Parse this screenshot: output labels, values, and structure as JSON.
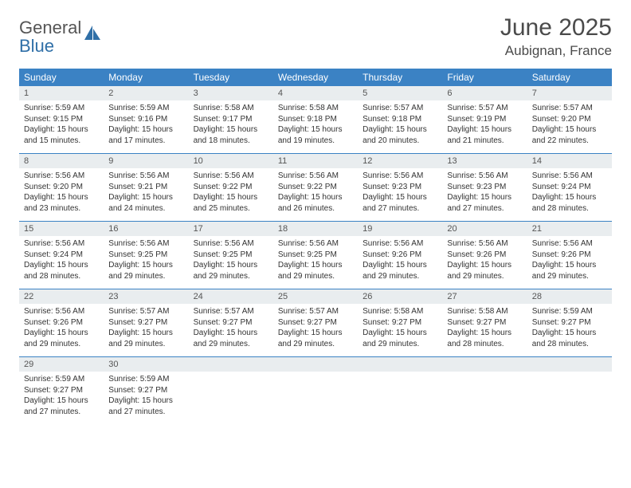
{
  "logo": {
    "word1": "General",
    "word2": "Blue"
  },
  "title": "June 2025",
  "location": "Aubignan, France",
  "colors": {
    "header_bg": "#3b82c4",
    "header_text": "#ffffff",
    "daynum_bg": "#e9edef",
    "border": "#3b82c4",
    "body_text": "#333333",
    "title_text": "#4a4a4a",
    "logo_gray": "#555555",
    "logo_blue": "#2f6fa7"
  },
  "typography": {
    "title_fontsize": 30,
    "location_fontsize": 17,
    "weekday_fontsize": 12,
    "daynum_fontsize": 11,
    "cell_fontsize": 10
  },
  "weekdays": [
    "Sunday",
    "Monday",
    "Tuesday",
    "Wednesday",
    "Thursday",
    "Friday",
    "Saturday"
  ],
  "weeks": [
    [
      {
        "n": "1",
        "sr": "Sunrise: 5:59 AM",
        "ss": "Sunset: 9:15 PM",
        "d1": "Daylight: 15 hours",
        "d2": "and 15 minutes."
      },
      {
        "n": "2",
        "sr": "Sunrise: 5:59 AM",
        "ss": "Sunset: 9:16 PM",
        "d1": "Daylight: 15 hours",
        "d2": "and 17 minutes."
      },
      {
        "n": "3",
        "sr": "Sunrise: 5:58 AM",
        "ss": "Sunset: 9:17 PM",
        "d1": "Daylight: 15 hours",
        "d2": "and 18 minutes."
      },
      {
        "n": "4",
        "sr": "Sunrise: 5:58 AM",
        "ss": "Sunset: 9:18 PM",
        "d1": "Daylight: 15 hours",
        "d2": "and 19 minutes."
      },
      {
        "n": "5",
        "sr": "Sunrise: 5:57 AM",
        "ss": "Sunset: 9:18 PM",
        "d1": "Daylight: 15 hours",
        "d2": "and 20 minutes."
      },
      {
        "n": "6",
        "sr": "Sunrise: 5:57 AM",
        "ss": "Sunset: 9:19 PM",
        "d1": "Daylight: 15 hours",
        "d2": "and 21 minutes."
      },
      {
        "n": "7",
        "sr": "Sunrise: 5:57 AM",
        "ss": "Sunset: 9:20 PM",
        "d1": "Daylight: 15 hours",
        "d2": "and 22 minutes."
      }
    ],
    [
      {
        "n": "8",
        "sr": "Sunrise: 5:56 AM",
        "ss": "Sunset: 9:20 PM",
        "d1": "Daylight: 15 hours",
        "d2": "and 23 minutes."
      },
      {
        "n": "9",
        "sr": "Sunrise: 5:56 AM",
        "ss": "Sunset: 9:21 PM",
        "d1": "Daylight: 15 hours",
        "d2": "and 24 minutes."
      },
      {
        "n": "10",
        "sr": "Sunrise: 5:56 AM",
        "ss": "Sunset: 9:22 PM",
        "d1": "Daylight: 15 hours",
        "d2": "and 25 minutes."
      },
      {
        "n": "11",
        "sr": "Sunrise: 5:56 AM",
        "ss": "Sunset: 9:22 PM",
        "d1": "Daylight: 15 hours",
        "d2": "and 26 minutes."
      },
      {
        "n": "12",
        "sr": "Sunrise: 5:56 AM",
        "ss": "Sunset: 9:23 PM",
        "d1": "Daylight: 15 hours",
        "d2": "and 27 minutes."
      },
      {
        "n": "13",
        "sr": "Sunrise: 5:56 AM",
        "ss": "Sunset: 9:23 PM",
        "d1": "Daylight: 15 hours",
        "d2": "and 27 minutes."
      },
      {
        "n": "14",
        "sr": "Sunrise: 5:56 AM",
        "ss": "Sunset: 9:24 PM",
        "d1": "Daylight: 15 hours",
        "d2": "and 28 minutes."
      }
    ],
    [
      {
        "n": "15",
        "sr": "Sunrise: 5:56 AM",
        "ss": "Sunset: 9:24 PM",
        "d1": "Daylight: 15 hours",
        "d2": "and 28 minutes."
      },
      {
        "n": "16",
        "sr": "Sunrise: 5:56 AM",
        "ss": "Sunset: 9:25 PM",
        "d1": "Daylight: 15 hours",
        "d2": "and 29 minutes."
      },
      {
        "n": "17",
        "sr": "Sunrise: 5:56 AM",
        "ss": "Sunset: 9:25 PM",
        "d1": "Daylight: 15 hours",
        "d2": "and 29 minutes."
      },
      {
        "n": "18",
        "sr": "Sunrise: 5:56 AM",
        "ss": "Sunset: 9:25 PM",
        "d1": "Daylight: 15 hours",
        "d2": "and 29 minutes."
      },
      {
        "n": "19",
        "sr": "Sunrise: 5:56 AM",
        "ss": "Sunset: 9:26 PM",
        "d1": "Daylight: 15 hours",
        "d2": "and 29 minutes."
      },
      {
        "n": "20",
        "sr": "Sunrise: 5:56 AM",
        "ss": "Sunset: 9:26 PM",
        "d1": "Daylight: 15 hours",
        "d2": "and 29 minutes."
      },
      {
        "n": "21",
        "sr": "Sunrise: 5:56 AM",
        "ss": "Sunset: 9:26 PM",
        "d1": "Daylight: 15 hours",
        "d2": "and 29 minutes."
      }
    ],
    [
      {
        "n": "22",
        "sr": "Sunrise: 5:56 AM",
        "ss": "Sunset: 9:26 PM",
        "d1": "Daylight: 15 hours",
        "d2": "and 29 minutes."
      },
      {
        "n": "23",
        "sr": "Sunrise: 5:57 AM",
        "ss": "Sunset: 9:27 PM",
        "d1": "Daylight: 15 hours",
        "d2": "and 29 minutes."
      },
      {
        "n": "24",
        "sr": "Sunrise: 5:57 AM",
        "ss": "Sunset: 9:27 PM",
        "d1": "Daylight: 15 hours",
        "d2": "and 29 minutes."
      },
      {
        "n": "25",
        "sr": "Sunrise: 5:57 AM",
        "ss": "Sunset: 9:27 PM",
        "d1": "Daylight: 15 hours",
        "d2": "and 29 minutes."
      },
      {
        "n": "26",
        "sr": "Sunrise: 5:58 AM",
        "ss": "Sunset: 9:27 PM",
        "d1": "Daylight: 15 hours",
        "d2": "and 29 minutes."
      },
      {
        "n": "27",
        "sr": "Sunrise: 5:58 AM",
        "ss": "Sunset: 9:27 PM",
        "d1": "Daylight: 15 hours",
        "d2": "and 28 minutes."
      },
      {
        "n": "28",
        "sr": "Sunrise: 5:59 AM",
        "ss": "Sunset: 9:27 PM",
        "d1": "Daylight: 15 hours",
        "d2": "and 28 minutes."
      }
    ],
    [
      {
        "n": "29",
        "sr": "Sunrise: 5:59 AM",
        "ss": "Sunset: 9:27 PM",
        "d1": "Daylight: 15 hours",
        "d2": "and 27 minutes."
      },
      {
        "n": "30",
        "sr": "Sunrise: 5:59 AM",
        "ss": "Sunset: 9:27 PM",
        "d1": "Daylight: 15 hours",
        "d2": "and 27 minutes."
      },
      {
        "empty": true
      },
      {
        "empty": true
      },
      {
        "empty": true
      },
      {
        "empty": true
      },
      {
        "empty": true
      }
    ]
  ]
}
